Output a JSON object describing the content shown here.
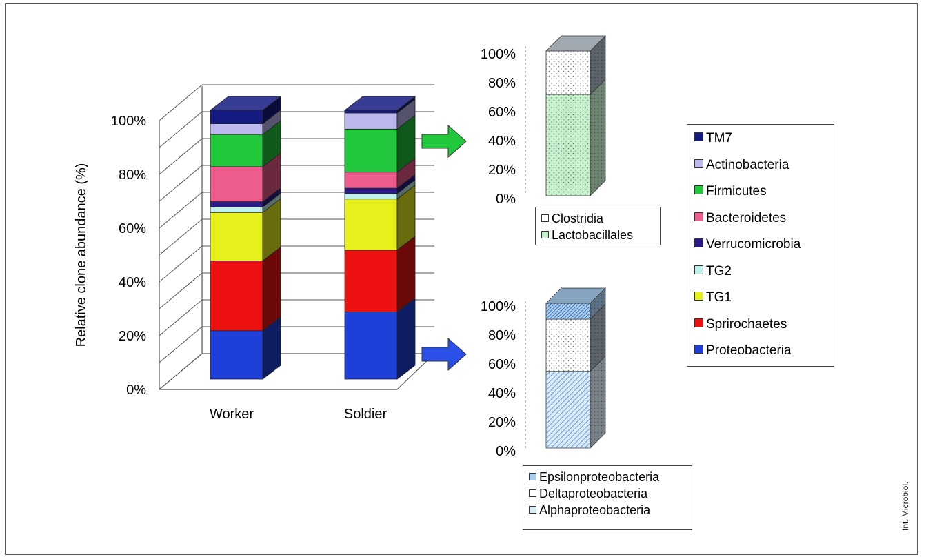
{
  "credit": "Int. Microbiol.",
  "chart_data": [
    {
      "type": "bar",
      "stacked": true,
      "style": "3d",
      "ylabel": "Relative clone abundance (%)",
      "yticks": [
        "0%",
        "20%",
        "40%",
        "60%",
        "80%",
        "100%"
      ],
      "ylim": [
        0,
        100
      ],
      "categories": [
        "Worker",
        "Soldier"
      ],
      "series": [
        {
          "name": "Proteobacteria",
          "color": "#1f3fd9",
          "values": [
            18,
            25
          ]
        },
        {
          "name": "Sprirochaetes",
          "color": "#ee1111",
          "values": [
            26,
            23
          ]
        },
        {
          "name": "TG1",
          "color": "#e6f01a",
          "values": [
            18,
            19
          ]
        },
        {
          "name": "TG2",
          "color": "#bff0ec",
          "values": [
            2,
            2
          ]
        },
        {
          "name": "Verrucomicrobia",
          "color": "#2a1a88",
          "values": [
            2,
            2
          ]
        },
        {
          "name": "Bacteroidetes",
          "color": "#ee5c8c",
          "values": [
            13,
            6
          ]
        },
        {
          "name": "Firmicutes",
          "color": "#22c83b",
          "values": [
            12,
            16
          ]
        },
        {
          "name": "Actinobacteria",
          "color": "#bdb8ee",
          "values": [
            4,
            6
          ]
        },
        {
          "name": "TM7",
          "color": "#141a82",
          "values": [
            5,
            1
          ]
        }
      ],
      "legend": {
        "position": "right",
        "entries": [
          "TM7",
          "Actinobacteria",
          "Firmicutes",
          "Bacteroidetes",
          "Verrucomicrobia",
          "TG2",
          "TG1",
          "Sprirochaetes",
          "Proteobacteria"
        ]
      },
      "grid": true
    },
    {
      "type": "bar",
      "stacked": true,
      "style": "3d",
      "source_series": "Firmicutes",
      "source_category": "Soldier",
      "arrow_color": "#22c83b",
      "yticks": [
        "0%",
        "20%",
        "40%",
        "60%",
        "80%",
        "100%"
      ],
      "ylim": [
        0,
        100
      ],
      "series": [
        {
          "name": "Lactobacillales",
          "color": "#c4f0cc",
          "values": [
            70
          ]
        },
        {
          "name": "Clostridia",
          "color": "#ffffff",
          "values": [
            30
          ]
        }
      ],
      "legend": {
        "position": "bottom",
        "entries": [
          "Clostridia",
          "Lactobacillales"
        ]
      }
    },
    {
      "type": "bar",
      "stacked": true,
      "style": "3d",
      "source_series": "Proteobacteria",
      "source_category": "Soldier",
      "arrow_color": "#2a50e8",
      "yticks": [
        "0%",
        "20%",
        "40%",
        "60%",
        "80%",
        "100%"
      ],
      "ylim": [
        0,
        100
      ],
      "series": [
        {
          "name": "Alphaproteobacteria",
          "color": "#d8ebf7",
          "values": [
            53
          ]
        },
        {
          "name": "Deltaproteobacteria",
          "color": "#ffffff",
          "values": [
            36
          ]
        },
        {
          "name": "Epsilonproteobacteria",
          "color": "#a8cdee",
          "values": [
            11
          ]
        }
      ],
      "legend": {
        "position": "bottom",
        "entries": [
          "Epsilonproteobacteria",
          "Deltaproteobacteria",
          "Alphaproteobacteria"
        ]
      }
    }
  ]
}
